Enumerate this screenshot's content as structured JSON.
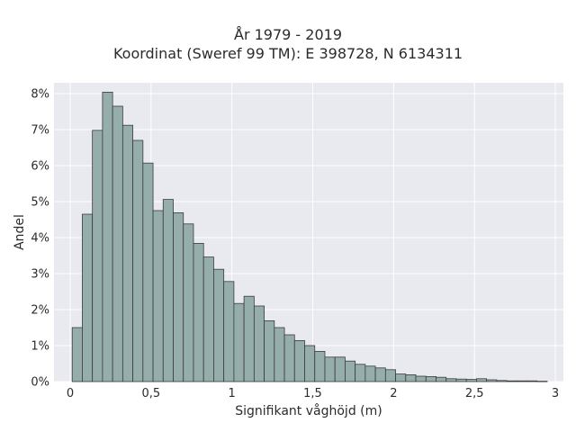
{
  "chart_data": {
    "type": "bar",
    "title": "År 1979 - 2019",
    "subtitle": "Koordinat (Sweref 99 TM): E 398728, N 6134311",
    "xlabel": "Signifikant våghöjd (m)",
    "ylabel": "Andel",
    "xlim": [
      -0.1,
      3.05
    ],
    "ylim": [
      0,
      8.3
    ],
    "x_ticks": [
      0,
      0.5,
      1,
      1.5,
      2,
      2.5,
      3
    ],
    "x_tick_labels": [
      "0",
      "0,5",
      "1",
      "1,5",
      "2",
      "2,5",
      "3"
    ],
    "y_ticks": [
      0,
      1,
      2,
      3,
      4,
      5,
      6,
      7,
      8
    ],
    "y_tick_labels": [
      "0%",
      "1%",
      "2%",
      "3%",
      "4%",
      "5%",
      "6%",
      "7%",
      "8%"
    ],
    "bin_width": 0.0625,
    "bin_starts": [
      0.0125,
      0.075,
      0.1375,
      0.2,
      0.2625,
      0.325,
      0.3875,
      0.45,
      0.5125,
      0.575,
      0.6375,
      0.7,
      0.7625,
      0.825,
      0.8875,
      0.95,
      1.0125,
      1.075,
      1.1375,
      1.2,
      1.2625,
      1.325,
      1.3875,
      1.45,
      1.5125,
      1.575,
      1.6375,
      1.7,
      1.7625,
      1.825,
      1.8875,
      1.95,
      2.0125,
      2.075,
      2.1375,
      2.2,
      2.2625,
      2.325,
      2.3875,
      2.45,
      2.5125,
      2.575,
      2.6375,
      2.7,
      2.7625,
      2.825,
      2.8875
    ],
    "values": [
      1.5,
      4.65,
      6.98,
      8.04,
      7.65,
      7.12,
      6.7,
      6.07,
      4.75,
      5.06,
      4.69,
      4.38,
      3.84,
      3.46,
      3.12,
      2.78,
      2.17,
      2.37,
      2.1,
      1.69,
      1.5,
      1.3,
      1.14,
      1.0,
      0.84,
      0.68,
      0.68,
      0.57,
      0.48,
      0.43,
      0.38,
      0.33,
      0.21,
      0.19,
      0.15,
      0.14,
      0.12,
      0.08,
      0.07,
      0.06,
      0.08,
      0.05,
      0.03,
      0.02,
      0.02,
      0.02,
      0.01
    ],
    "grid": true,
    "legend": "none",
    "colors": {
      "bar_fill": "#95aeac",
      "bar_edge": "#3b3b3b",
      "plot_background": "#e9e9f0",
      "grid": "#ffffff"
    }
  }
}
